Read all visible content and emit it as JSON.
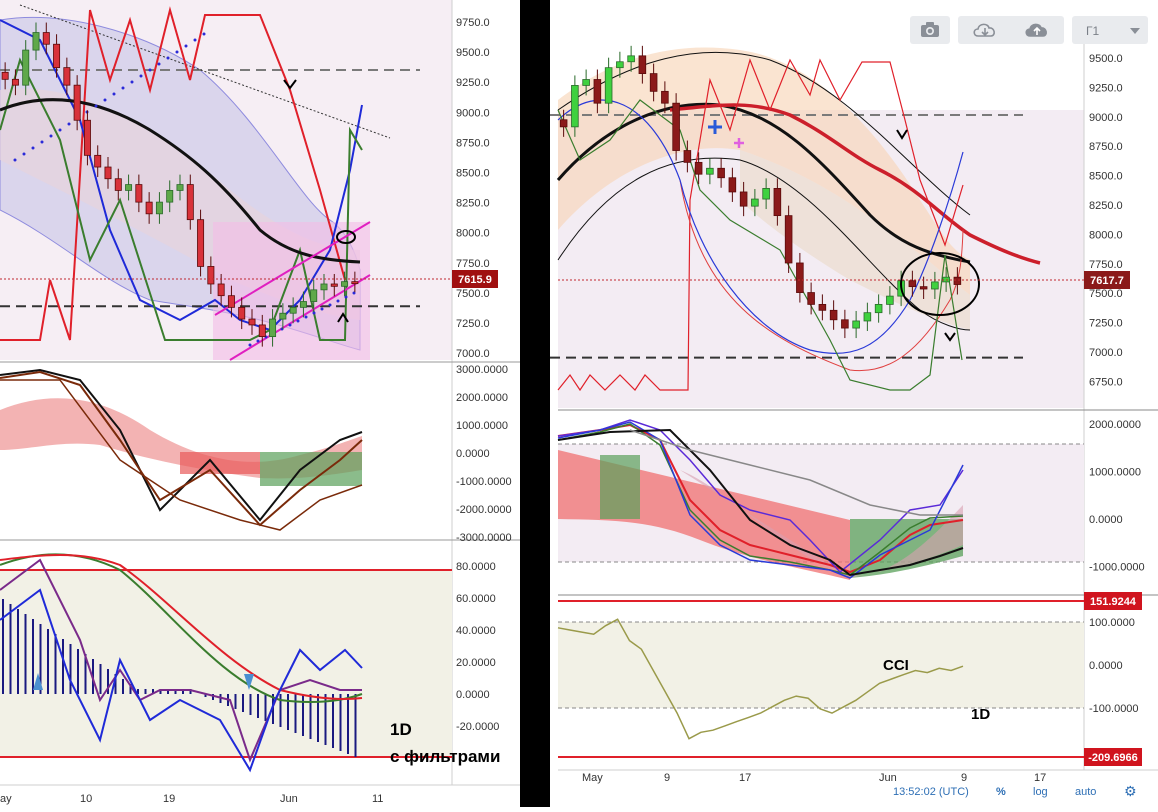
{
  "left_chart": {
    "price_axis": {
      "ticks": [
        "9750.0",
        "9500.0",
        "9250.0",
        "9000.0",
        "8750.0",
        "8500.0",
        "8250.0",
        "8000.0",
        "7750.0",
        "7500.0",
        "7250.0",
        "7000.0"
      ],
      "current_price": "7615.9"
    },
    "oscillator_axis": {
      "ticks": [
        "3000.0000",
        "2000.0000",
        "1000.0000",
        "0.0000",
        "-1000.0000",
        "-2000.0000",
        "-3000.0000"
      ]
    },
    "stoch_axis": {
      "ticks": [
        "80.0000",
        "60.0000",
        "40.0000",
        "20.0000",
        "0.0000",
        "-20.0000"
      ]
    },
    "time_axis": {
      "ticks": [
        "ay",
        "10",
        "19",
        "Jun",
        "11"
      ]
    },
    "annotation_1": "1D",
    "annotation_2": "с фильтрами"
  },
  "right_chart": {
    "toolbar": {
      "camera_icon": "camera-icon",
      "cloud_download_icon": "cloud-download-icon",
      "cloud_upload_icon": "cloud-upload-icon",
      "interval_label": "Г1",
      "chevron_icon": "chevron-down-icon"
    },
    "price_axis": {
      "ticks": [
        "9500.0",
        "9250.0",
        "9000.0",
        "8750.0",
        "8500.0",
        "8250.0",
        "8000.0",
        "7750.0",
        "7500.0",
        "7250.0",
        "7000.0",
        "6750.0"
      ],
      "current_price": "7617.7"
    },
    "oscillator_axis": {
      "ticks": [
        "2000.0000",
        "1000.0000",
        "0.0000",
        "-1000.0000"
      ]
    },
    "cci_axis": {
      "ticks": [
        "100.0000",
        "0.0000",
        "-100.0000"
      ],
      "upper_label": "151.9244",
      "lower_label": "-209.6966"
    },
    "time_axis": {
      "ticks": [
        "May",
        "9",
        "17",
        "Jun",
        "9",
        "17"
      ]
    },
    "cci_label": "CCI",
    "tf_label": "1D",
    "status_bar": {
      "time": "13:52:02 (UTC)",
      "percent": "%",
      "log": "log",
      "auto": "auto",
      "settings_icon": "gear-icon"
    },
    "colors": {
      "price_badge": "#8b1a1a",
      "bull": "#3fd13f",
      "bear": "#8b1a1a",
      "ma_red": "#cc1f2b"
    }
  },
  "chart_data": [
    {
      "type": "candlestick",
      "panel": "left-price",
      "ylim": [
        6950,
        9900
      ],
      "x_labels": [
        "ay",
        "10",
        "19",
        "Jun",
        "11"
      ],
      "close": [
        9350,
        9300,
        9600,
        9750,
        9650,
        9450,
        9300,
        9000,
        8700,
        8600,
        8500,
        8400,
        8450,
        8300,
        8200,
        8300,
        8400,
        8450,
        8150,
        7750,
        7600,
        7500,
        7400,
        7300,
        7250,
        7150,
        7300,
        7350,
        7400,
        7450,
        7550,
        7600,
        7580,
        7620,
        7616
      ],
      "horizontal_levels": [
        9430,
        7410
      ],
      "last": 7615.9
    },
    {
      "type": "candlestick",
      "panel": "right-price",
      "ylim": [
        6600,
        9650
      ],
      "x_labels": [
        "May",
        "9",
        "17",
        "Jun",
        "9",
        "17"
      ],
      "close": [
        8950,
        9300,
        9350,
        9150,
        9450,
        9500,
        9550,
        9400,
        9250,
        9150,
        8750,
        8650,
        8550,
        8600,
        8520,
        8400,
        8280,
        8340,
        8430,
        8200,
        7800,
        7550,
        7450,
        7400,
        7320,
        7250,
        7310,
        7380,
        7450,
        7520,
        7650,
        7600,
        7580,
        7640,
        7680,
        7618
      ],
      "horizontal_levels": [
        9050,
        7000
      ],
      "last": 7617.7
    },
    {
      "type": "line",
      "panel": "right-cci",
      "ylim": [
        -220,
        160
      ],
      "upper_band": 151.9244,
      "lower_band": -209.6966,
      "values": [
        90,
        85,
        80,
        75,
        95,
        110,
        60,
        40,
        -10,
        -60,
        -110,
        -170,
        -155,
        -150,
        -140,
        -130,
        -120,
        -110,
        -95,
        -80,
        -70,
        -75,
        -100,
        -110,
        -95,
        -80,
        -60,
        -40,
        -30,
        -20,
        -10,
        -15,
        -5,
        -10,
        0
      ]
    }
  ]
}
